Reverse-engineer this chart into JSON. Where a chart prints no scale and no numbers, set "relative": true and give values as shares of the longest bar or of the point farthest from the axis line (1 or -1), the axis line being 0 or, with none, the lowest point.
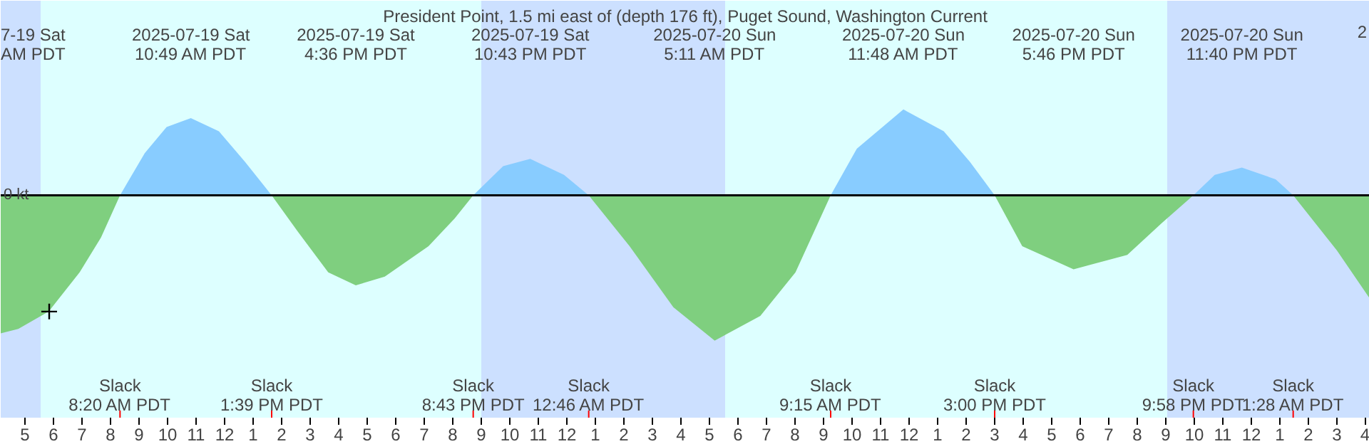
{
  "chart_data": {
    "type": "area",
    "relative": true,
    "title": "President Point, 1.5 mi east of (depth 176 ft), Puget Sound, Washington Current",
    "xlim": [
      "2025-07-19T04:09",
      "2025-07-21T04:09"
    ],
    "xticks": [
      {
        "value": "2025-07-19T05:00",
        "label": "5"
      },
      {
        "value": "2025-07-19T06:00",
        "label": "6"
      },
      {
        "value": "2025-07-19T07:00",
        "label": "7"
      },
      {
        "value": "2025-07-19T08:00",
        "label": "8"
      },
      {
        "value": "2025-07-19T09:00",
        "label": "9"
      },
      {
        "value": "2025-07-19T10:00",
        "label": "10"
      },
      {
        "value": "2025-07-19T11:00",
        "label": "11"
      },
      {
        "value": "2025-07-19T12:00",
        "label": "12"
      },
      {
        "value": "2025-07-19T13:00",
        "label": "1"
      },
      {
        "value": "2025-07-19T14:00",
        "label": "2"
      },
      {
        "value": "2025-07-19T15:00",
        "label": "3"
      },
      {
        "value": "2025-07-19T16:00",
        "label": "4"
      },
      {
        "value": "2025-07-19T17:00",
        "label": "5"
      },
      {
        "value": "2025-07-19T18:00",
        "label": "6"
      },
      {
        "value": "2025-07-19T19:00",
        "label": "7"
      },
      {
        "value": "2025-07-19T20:00",
        "label": "8"
      },
      {
        "value": "2025-07-19T21:00",
        "label": "9"
      },
      {
        "value": "2025-07-19T22:00",
        "label": "10"
      },
      {
        "value": "2025-07-19T23:00",
        "label": "11"
      },
      {
        "value": "2025-07-20T00:00",
        "label": "12"
      },
      {
        "value": "2025-07-20T01:00",
        "label": "1"
      },
      {
        "value": "2025-07-20T02:00",
        "label": "2"
      },
      {
        "value": "2025-07-20T03:00",
        "label": "3"
      },
      {
        "value": "2025-07-20T04:00",
        "label": "4"
      },
      {
        "value": "2025-07-20T05:00",
        "label": "5"
      },
      {
        "value": "2025-07-20T06:00",
        "label": "6"
      },
      {
        "value": "2025-07-20T07:00",
        "label": "7"
      },
      {
        "value": "2025-07-20T08:00",
        "label": "8"
      },
      {
        "value": "2025-07-20T09:00",
        "label": "9"
      },
      {
        "value": "2025-07-20T10:00",
        "label": "10"
      },
      {
        "value": "2025-07-20T11:00",
        "label": "11"
      },
      {
        "value": "2025-07-20T12:00",
        "label": "12"
      },
      {
        "value": "2025-07-20T13:00",
        "label": "1"
      },
      {
        "value": "2025-07-20T14:00",
        "label": "2"
      },
      {
        "value": "2025-07-20T15:00",
        "label": "3"
      },
      {
        "value": "2025-07-20T16:00",
        "label": "4"
      },
      {
        "value": "2025-07-20T17:00",
        "label": "5"
      },
      {
        "value": "2025-07-20T18:00",
        "label": "6"
      },
      {
        "value": "2025-07-20T19:00",
        "label": "7"
      },
      {
        "value": "2025-07-20T20:00",
        "label": "8"
      },
      {
        "value": "2025-07-20T21:00",
        "label": "9"
      },
      {
        "value": "2025-07-20T22:00",
        "label": "10"
      },
      {
        "value": "2025-07-20T23:00",
        "label": "11"
      },
      {
        "value": "2025-07-21T00:00",
        "label": "12"
      },
      {
        "value": "2025-07-21T01:00",
        "label": "1"
      },
      {
        "value": "2025-07-21T02:00",
        "label": "2"
      },
      {
        "value": "2025-07-21T03:00",
        "label": "3"
      },
      {
        "value": "2025-07-21T04:00",
        "label": "4"
      }
    ],
    "series": [
      {
        "color": "#7fcf7f",
        "x": [
          "2025-07-19T04:09",
          "2025-07-19T04:46",
          "2025-07-19T05:50",
          "2025-07-19T06:55",
          "2025-07-19T07:40",
          "2025-07-19T08:20",
          "2025-07-19T13:39",
          "2025-07-19T14:34",
          "2025-07-19T15:38",
          "2025-07-19T16:36",
          "2025-07-19T17:37",
          "2025-07-19T19:09",
          "2025-07-19T20:04",
          "2025-07-19T20:43",
          "2025-07-20T00:46",
          "2025-07-20T02:12",
          "2025-07-20T03:44",
          "2025-07-20T05:11",
          "2025-07-20T06:47",
          "2025-07-20T08:01",
          "2025-07-20T09:15",
          "2025-07-20T15:00",
          "2025-07-20T15:58",
          "2025-07-20T17:46",
          "2025-07-20T19:39",
          "2025-07-20T20:52",
          "2025-07-20T21:58",
          "2025-07-21T01:28",
          "2025-07-21T03:00",
          "2025-07-21T04:09"
        ],
        "values": [
          -0.95,
          -0.92,
          -0.8,
          -0.53,
          -0.29,
          0,
          0,
          -0.25,
          -0.53,
          -0.62,
          -0.56,
          -0.35,
          -0.16,
          0,
          0,
          -0.35,
          -0.77,
          -1,
          -0.83,
          -0.53,
          0,
          0,
          -0.35,
          -0.51,
          -0.41,
          -0.19,
          0,
          0,
          -0.38,
          -0.71
        ]
      },
      {
        "color": "#88ccff",
        "x": [
          "2025-07-19T08:20",
          "2025-07-19T09:12",
          "2025-07-19T09:58",
          "2025-07-19T10:49",
          "2025-07-19T11:48",
          "2025-07-19T12:43",
          "2025-07-19T13:39",
          "2025-07-19T20:43",
          "2025-07-19T21:46",
          "2025-07-19T22:43",
          "2025-07-19T23:54",
          "2025-07-20T00:46",
          "2025-07-20T09:15",
          "2025-07-20T10:10",
          "2025-07-20T11:48",
          "2025-07-20T13:13",
          "2025-07-20T14:08",
          "2025-07-20T15:00",
          "2025-07-20T21:58",
          "2025-07-20T22:43",
          "2025-07-20T23:40",
          "2025-07-21T00:51",
          "2025-07-21T01:28"
        ],
        "values": [
          0,
          0.29,
          0.47,
          0.53,
          0.44,
          0.23,
          0,
          0,
          0.2,
          0.25,
          0.14,
          0,
          0,
          0.32,
          0.59,
          0.44,
          0.23,
          0,
          0,
          0.14,
          0.19,
          0.11,
          0
        ]
      },
      {
        "type": "scatter",
        "marker": "cross",
        "color": "#000000",
        "x": [
          "2025-07-19T05:51"
        ],
        "values": [
          -0.8
        ]
      }
    ],
    "ref_lines": [
      {
        "axis": "y",
        "value": 0,
        "label": "0 kt",
        "color": "#000000"
      }
    ],
    "bands": [
      {
        "axis": "x",
        "from": "2025-07-19T04:09",
        "to": "2025-07-19T05:33",
        "color": "#cce0ff"
      },
      {
        "axis": "x",
        "from": "2025-07-19T05:33",
        "to": "2025-07-19T21:00",
        "color": "#ddffff"
      },
      {
        "axis": "x",
        "from": "2025-07-19T21:00",
        "to": "2025-07-20T05:33",
        "color": "#cce0ff"
      },
      {
        "axis": "x",
        "from": "2025-07-20T05:33",
        "to": "2025-07-20T21:03",
        "color": "#ddffff"
      },
      {
        "axis": "x",
        "from": "2025-07-20T21:03",
        "to": "2025-07-21T04:09",
        "color": "#cce0ff"
      }
    ],
    "annotations": [
      "7-19 Sat\nAM PDT",
      "2025-07-19 Sat\n10:49 AM PDT",
      "2025-07-19 Sat\n4:36 PM PDT",
      "2025-07-19 Sat\n10:43 PM PDT",
      "2025-07-20 Sun\n5:11 AM PDT",
      "2025-07-20 Sun\n11:48 AM PDT",
      "2025-07-20 Sun\n5:46 PM PDT",
      "2025-07-20 Sun\n11:40 PM PDT",
      "2",
      "Slack\n8:20 AM PDT",
      "Slack\n1:39 PM PDT",
      "Slack\n8:43 PM PDT",
      "Slack\n12:46 AM PDT",
      "Slack\n9:15 AM PDT",
      "Slack\n3:00 PM PDT",
      "Slack\n9:58 PM PDT",
      "Slack\n1:28 AM PDT"
    ]
  }
}
